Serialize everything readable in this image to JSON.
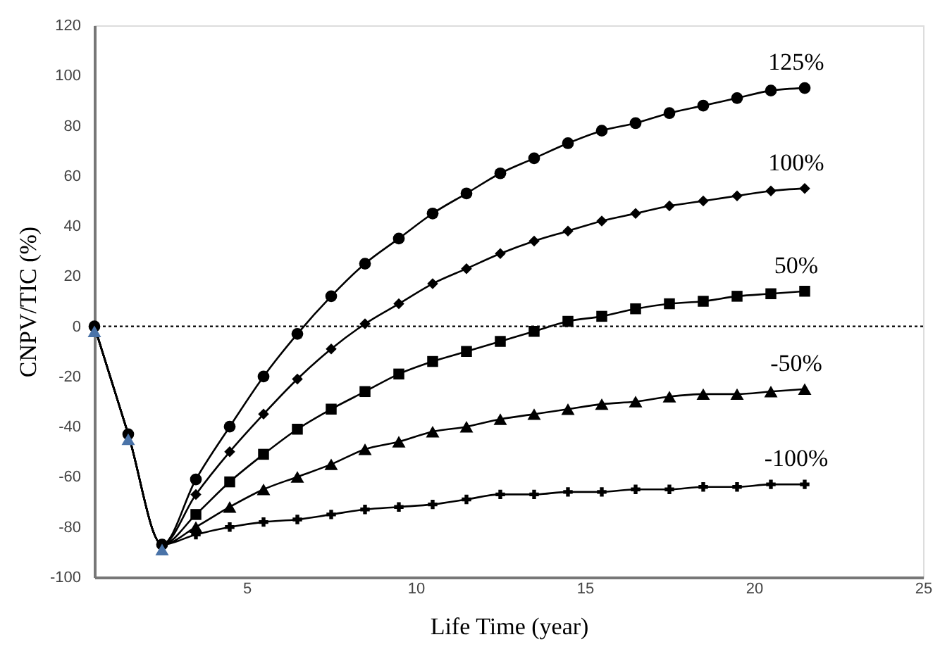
{
  "chart_data": {
    "type": "line",
    "xlabel": "Life Time (year)",
    "ylabel": "CNPV/TIC (%)",
    "x": [
      0.5,
      1.5,
      2.5,
      3.5,
      4.5,
      5.5,
      6.5,
      7.5,
      8.5,
      9.5,
      10.5,
      11.5,
      12.5,
      13.5,
      14.5,
      15.5,
      16.5,
      17.5,
      18.5,
      19.5,
      20.5,
      21.5
    ],
    "series": [
      {
        "name": "125%",
        "color": "#000000",
        "marker": "circle",
        "values": [
          0,
          -43,
          -87,
          -61,
          -40,
          -20,
          -3,
          12,
          25,
          35,
          45,
          53,
          61,
          67,
          73,
          78,
          81,
          85,
          88,
          91,
          94,
          95
        ]
      },
      {
        "name": "100%",
        "color": "#000000",
        "marker": "diamond",
        "values": [
          0,
          -43,
          -87,
          -67,
          -50,
          -35,
          -21,
          -9,
          1,
          9,
          17,
          23,
          29,
          34,
          38,
          42,
          45,
          48,
          50,
          52,
          54,
          55
        ]
      },
      {
        "name": "50%",
        "color": "#000000",
        "marker": "square",
        "values": [
          0,
          -43,
          -87,
          -75,
          -62,
          -51,
          -41,
          -33,
          -26,
          -19,
          -14,
          -10,
          -6,
          -2,
          2,
          4,
          7,
          9,
          10,
          12,
          13,
          14
        ]
      },
      {
        "name": "-50%",
        "color": "#000000",
        "marker": "triangle",
        "values": [
          0,
          -43,
          -87,
          -80,
          -72,
          -65,
          -60,
          -55,
          -49,
          -46,
          -42,
          -40,
          -37,
          -35,
          -33,
          -31,
          -30,
          -28,
          -27,
          -27,
          -26,
          -25
        ]
      },
      {
        "name": "-100%",
        "color": "#000000",
        "marker": "cross",
        "values": [
          0,
          -43,
          -87,
          -83,
          -80,
          -78,
          -77,
          -75,
          -73,
          -72,
          -71,
          -69,
          -67,
          -67,
          -66,
          -66,
          -65,
          -65,
          -64,
          -64,
          -63,
          -63
        ]
      },
      {
        "type": "scatter",
        "color": "#4a73a8",
        "marker": "triangle",
        "x": [
          0.5,
          1.5,
          2.5
        ],
        "values": [
          -2,
          -45,
          -89
        ]
      }
    ],
    "xlim": [
      0.5,
      25
    ],
    "xticks": [
      5,
      10,
      15,
      20,
      25
    ],
    "ylim": [
      -100,
      120
    ],
    "yticks": [
      -100,
      -80,
      -60,
      -40,
      -20,
      0,
      20,
      40,
      60,
      80,
      100,
      120
    ],
    "ref_lines": [
      {
        "axis": "y",
        "value": 0,
        "color": "#000000",
        "line_style": "dotted"
      }
    ],
    "grid": false,
    "legend": false
  }
}
